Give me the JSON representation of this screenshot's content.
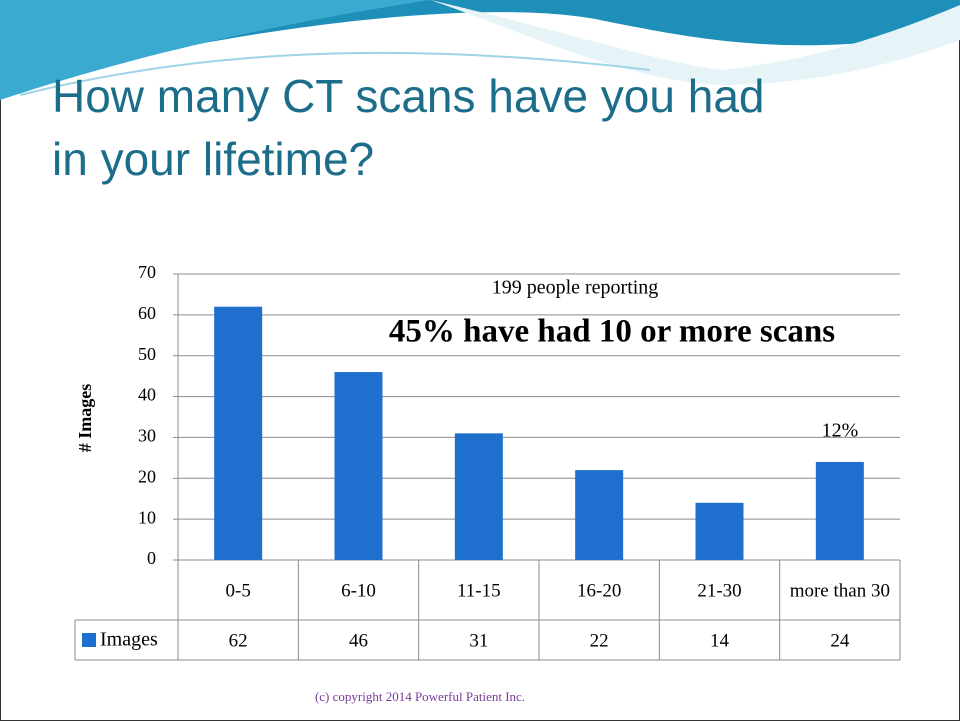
{
  "chart_data": {
    "type": "bar",
    "title": [
      "How many CT scans have you had",
      "in your lifetime?"
    ],
    "y_label": "# Images",
    "annotations": [
      "199 people reporting",
      "45% have had 10 or more scans",
      "12%"
    ],
    "categories": [
      "0-5",
      "6-10",
      "11-15",
      "16-20",
      "21-30",
      "more than 30"
    ],
    "series": [
      {
        "name": "Images",
        "color": "#1f6fce",
        "values": [
          62,
          46,
          31,
          22,
          14,
          24
        ]
      }
    ],
    "ylim": [
      0,
      70
    ],
    "yticks": [
      0,
      10,
      20,
      30,
      40,
      50,
      60,
      70
    ],
    "grid": true,
    "data_table": true
  },
  "footer": "(c) copyright 2014 Powerful Patient Inc."
}
